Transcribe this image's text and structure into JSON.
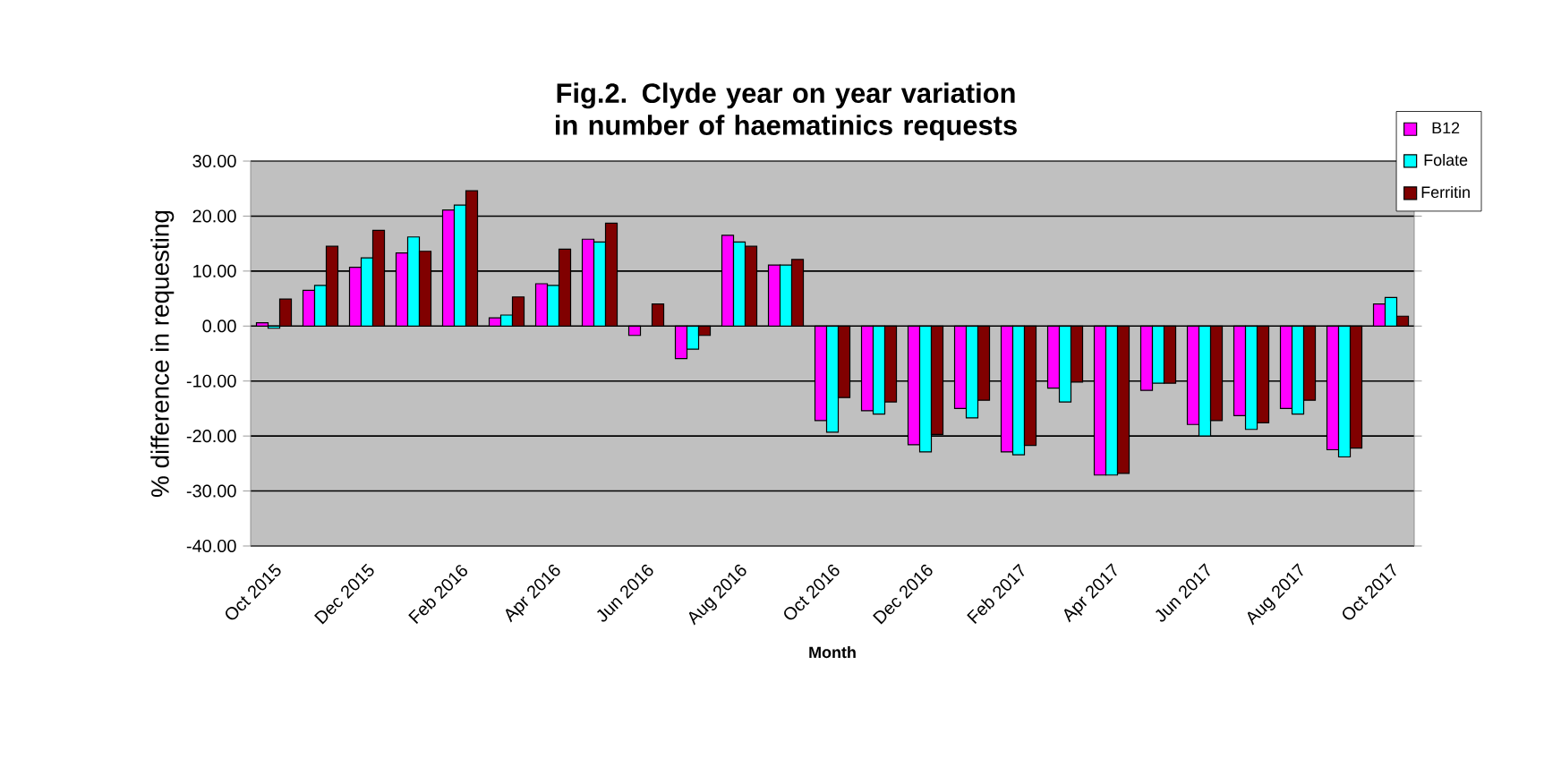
{
  "chart_data": {
    "type": "bar",
    "title": "Fig.2. Clyde year on year variation in number of haematinics requests",
    "xlabel": "Month",
    "ylabel": "% difference in requesting",
    "categories": [
      "Oct 2015",
      null,
      "Dec 2015",
      null,
      "Feb 2016",
      null,
      "Apr 2016",
      null,
      "Jun 2016",
      null,
      "Aug 2016",
      null,
      "Oct 2016",
      null,
      "Dec 2016",
      null,
      "Feb 2017",
      null,
      "Apr 2017",
      null,
      "Jun 2017",
      null,
      "Aug 2017",
      null,
      "Oct 2017"
    ],
    "series": [
      {
        "name": "B12",
        "color": "#ff00ff",
        "values": [
          0.6,
          6.5,
          10.7,
          13.3,
          21.1,
          1.5,
          7.7,
          15.8,
          -1.7,
          -5.9,
          16.5,
          11.1,
          -17.2,
          -15.4,
          -21.6,
          -15.0,
          -22.9,
          -11.3,
          -27.1,
          -11.7,
          -17.9,
          -16.3,
          -15.0,
          -22.5,
          4.0
        ]
      },
      {
        "name": "Folate",
        "color": "#00ffff",
        "values": [
          -0.4,
          7.4,
          12.4,
          16.2,
          22.0,
          2.0,
          7.4,
          15.3,
          null,
          -4.2,
          15.3,
          11.1,
          -19.3,
          -16.0,
          -22.9,
          -16.7,
          -23.4,
          -13.8,
          -27.1,
          -10.4,
          -20.0,
          -18.8,
          -16.0,
          -23.8,
          5.2
        ]
      },
      {
        "name": "Ferritin",
        "color": "#800000",
        "values": [
          4.9,
          14.5,
          17.4,
          13.6,
          24.6,
          5.3,
          14.0,
          18.7,
          4.0,
          -1.7,
          14.5,
          12.1,
          -13.0,
          -13.8,
          -19.7,
          -13.5,
          -21.7,
          -10.2,
          -26.8,
          -10.4,
          -17.2,
          -17.6,
          -13.5,
          -22.2,
          1.8
        ]
      }
    ],
    "ylim": [
      -40,
      30
    ],
    "yticks": [
      {
        "value": -40,
        "label": "-40.00"
      },
      {
        "value": -30,
        "label": "-30.00"
      },
      {
        "value": -20,
        "label": "-20.00"
      },
      {
        "value": -10,
        "label": "-10.00"
      },
      {
        "value": 0,
        "label": "0.00"
      },
      {
        "value": 10,
        "label": "10.00"
      },
      {
        "value": 20,
        "label": "20.00"
      },
      {
        "value": 30,
        "label": "30.00"
      }
    ],
    "grid": "y",
    "legend": "right"
  }
}
